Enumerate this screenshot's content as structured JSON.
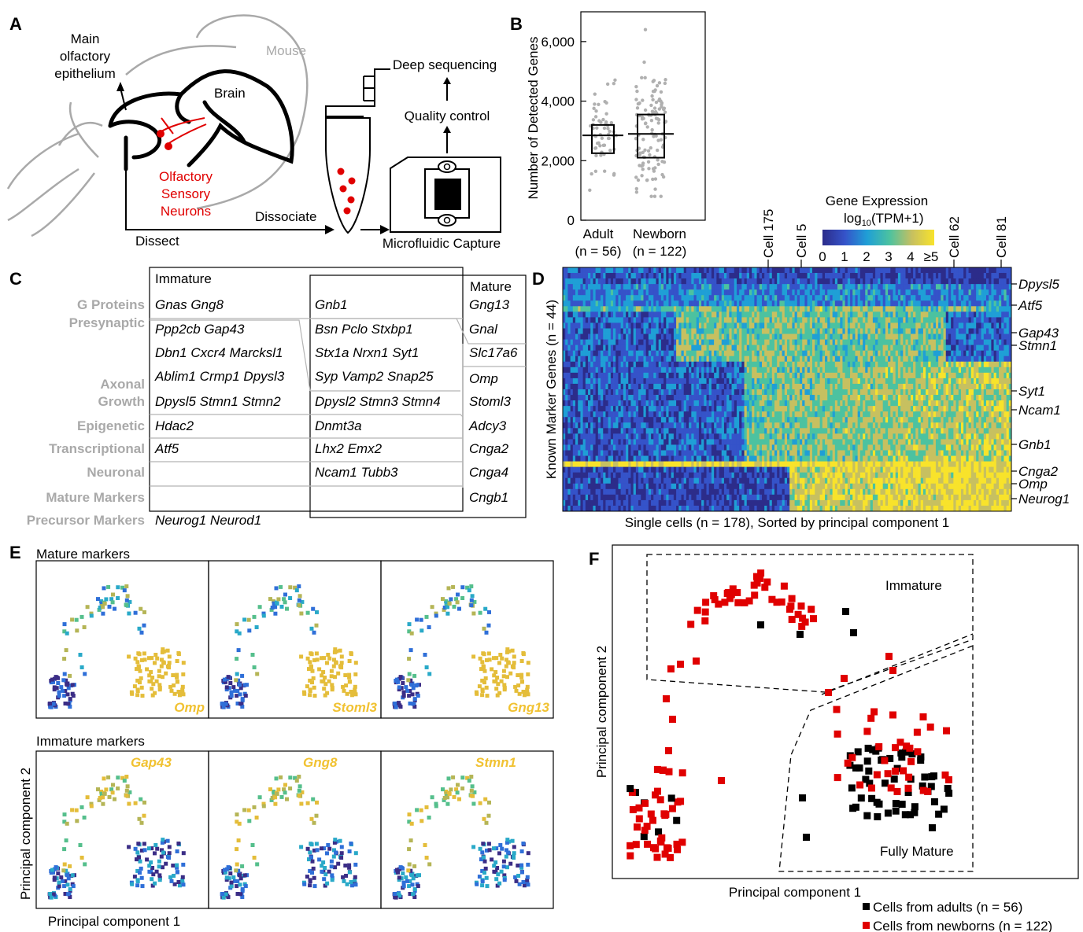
{
  "panels": [
    "A",
    "B",
    "C",
    "D",
    "E",
    "F"
  ],
  "panelA": {
    "mouse": "Mouse",
    "epithelium": [
      "Main",
      "olfactory",
      "epithelium"
    ],
    "brain": "Brain",
    "neurons": [
      "Olfactory",
      "Sensory",
      "Neurons"
    ],
    "dissect": "Dissect",
    "dissociate": "Dissociate",
    "capture": "Microfluidic Capture",
    "qc": "Quality control",
    "seq": "Deep sequencing"
  },
  "panelB": {
    "ylabel": "Number of Detected Genes",
    "ticks": [
      "0",
      "2,000",
      "4,000",
      "6,000"
    ],
    "groups": [
      {
        "name": "Adult",
        "n": "(n = 56)"
      },
      {
        "name": "Newborn",
        "n": "(n = 122)"
      }
    ]
  },
  "panelC": {
    "headers": {
      "immature": "Immature",
      "mature": "Mature"
    },
    "categories": [
      "G Proteins",
      "Presynaptic",
      "Axonal",
      "Growth",
      "Epigenetic",
      "Transcriptional",
      "Neuronal",
      "Mature Markers",
      "Precursor Markers"
    ],
    "immature": [
      "Gnas  Gng8",
      "Ppp2cb  Gap43",
      "Dbn1  Cxcr4  Marcksl1",
      "Ablim1  Crmp1  Dpysl3",
      "Dpysl5  Stmn1  Stmn2",
      "Hdac2",
      "Atf5",
      "Neurog1  Neurod1"
    ],
    "middle": [
      "Gnb1",
      "Bsn  Pclo  Stxbp1",
      "Stx1a  Nrxn1  Syt1",
      "Syp  Vamp2  Snap25",
      "Dpysl2  Stmn3  Stmn4",
      "Dnmt3a",
      "Lhx2  Emx2",
      "Ncam1  Tubb3"
    ],
    "mature": [
      "Gng13",
      "Gnal",
      "Slc17a6",
      "Omp",
      "Stoml3",
      "Adcy3",
      "Cnga2",
      "Cnga4",
      "Cngb1"
    ]
  },
  "panelD": {
    "colorbar_title": [
      "Gene Expression",
      "log10(TPM+1)"
    ],
    "colorbar_ticks": [
      "0",
      "1",
      "2",
      "3",
      "4",
      "≥5"
    ],
    "cells": [
      "Cell 175",
      "Cell 5",
      "Cell 62",
      "Cell 81"
    ],
    "genes": [
      "Dpysl5",
      "Atf5",
      "Gap43",
      "Stmn1",
      "Syt1",
      "Ncam1",
      "Gnb1",
      "Cnga2",
      "Omp",
      "Neurog1"
    ],
    "ylabel": "Known Marker Genes (n = 44)",
    "xlabel": "Single cells (n = 178), Sorted by principal component 1"
  },
  "panelE": {
    "mature_title": "Mature markers",
    "immature_title": "Immature markers",
    "mature_genes": [
      "Omp",
      "Stoml3",
      "Gng13"
    ],
    "immature_genes": [
      "Gap43",
      "Gng8",
      "Stmn1"
    ],
    "xlabel": "Principal component 1",
    "ylabel": "Principal component 2"
  },
  "panelF": {
    "immature": "Immature",
    "mature": "Fully Mature",
    "xlabel": "Principal component 1",
    "ylabel": "Principal component 2",
    "legend": [
      {
        "label": "Cells from adults (n = 56)",
        "color": "#000000"
      },
      {
        "label": "Cells from newborns (n = 122)",
        "color": "#e00000"
      }
    ]
  }
}
